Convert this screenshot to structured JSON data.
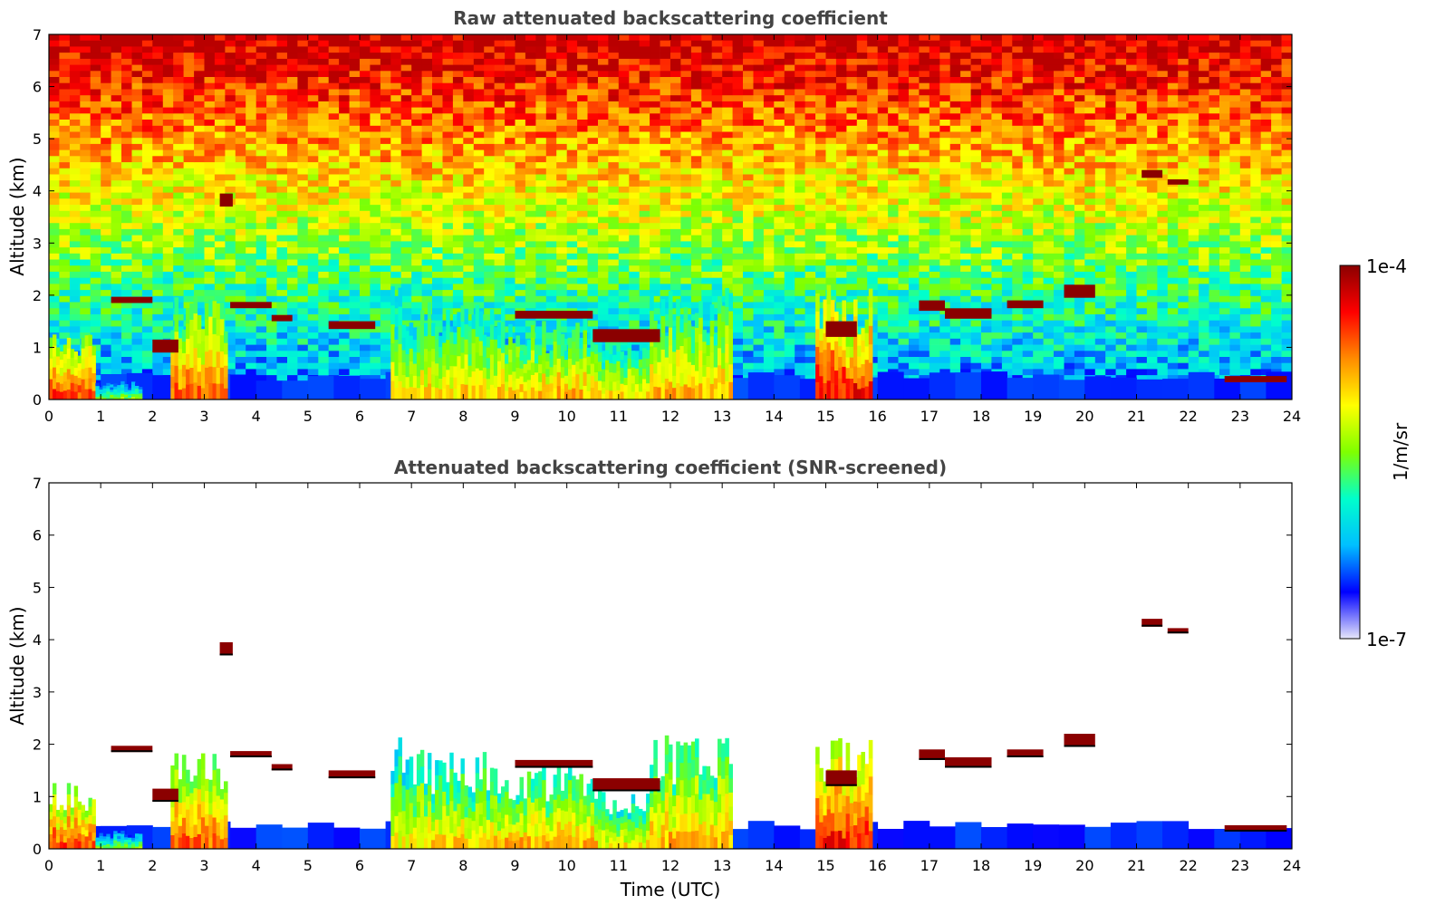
{
  "chart_data": [
    {
      "type": "heatmap",
      "title": "Raw attenuated backscattering coefficient",
      "xlabel": "",
      "ylabel": "Altitude (km)",
      "xlim": [
        0,
        24
      ],
      "ylim": [
        0,
        7
      ],
      "x_ticks": [
        "0",
        "1",
        "2",
        "3",
        "4",
        "5",
        "6",
        "7",
        "8",
        "9",
        "10",
        "11",
        "12",
        "13",
        "14",
        "15",
        "16",
        "17",
        "18",
        "19",
        "20",
        "21",
        "22",
        "23",
        "24"
      ],
      "y_ticks": [
        "0",
        "1",
        "2",
        "3",
        "4",
        "5",
        "6",
        "7"
      ],
      "grid": false,
      "background_noise": true,
      "surface_layer_top_km": 0.45,
      "profiles": [
        {
          "x0": 0.0,
          "x1": 0.9,
          "top": 1.3,
          "level": 0.82
        },
        {
          "x0": 0.9,
          "x1": 1.8,
          "top": 0.35,
          "level": 0.5
        },
        {
          "x0": 2.35,
          "x1": 3.45,
          "top": 2.05,
          "level": 0.78
        },
        {
          "x0": 6.6,
          "x1": 7.1,
          "top": 2.2,
          "level": 0.62
        },
        {
          "x0": 7.1,
          "x1": 8.8,
          "top": 1.9,
          "level": 0.66
        },
        {
          "x0": 8.8,
          "x1": 10.6,
          "top": 1.6,
          "level": 0.7
        },
        {
          "x0": 10.6,
          "x1": 11.6,
          "top": 1.2,
          "level": 0.64
        },
        {
          "x0": 11.6,
          "x1": 13.2,
          "top": 2.2,
          "level": 0.7
        },
        {
          "x0": 14.8,
          "x1": 15.9,
          "top": 2.2,
          "level": 0.86
        }
      ],
      "cloud_layers": [
        {
          "x0": 1.2,
          "x1": 2.0,
          "y": 1.85,
          "h": 0.12
        },
        {
          "x0": 2.0,
          "x1": 2.5,
          "y": 0.9,
          "h": 0.25
        },
        {
          "x0": 3.3,
          "x1": 3.55,
          "y": 3.7,
          "h": 0.25
        },
        {
          "x0": 3.5,
          "x1": 4.3,
          "y": 1.75,
          "h": 0.12
        },
        {
          "x0": 4.3,
          "x1": 4.7,
          "y": 1.5,
          "h": 0.12
        },
        {
          "x0": 5.4,
          "x1": 6.3,
          "y": 1.35,
          "h": 0.15
        },
        {
          "x0": 9.0,
          "x1": 10.5,
          "y": 1.55,
          "h": 0.15
        },
        {
          "x0": 10.5,
          "x1": 11.8,
          "y": 1.1,
          "h": 0.25
        },
        {
          "x0": 15.0,
          "x1": 15.6,
          "y": 1.2,
          "h": 0.3
        },
        {
          "x0": 16.8,
          "x1": 17.3,
          "y": 1.7,
          "h": 0.2
        },
        {
          "x0": 17.3,
          "x1": 18.2,
          "y": 1.55,
          "h": 0.2
        },
        {
          "x0": 18.5,
          "x1": 19.2,
          "y": 1.75,
          "h": 0.15
        },
        {
          "x0": 19.6,
          "x1": 20.2,
          "y": 1.95,
          "h": 0.25
        },
        {
          "x0": 21.1,
          "x1": 21.5,
          "y": 4.25,
          "h": 0.15
        },
        {
          "x0": 21.6,
          "x1": 22.0,
          "y": 4.12,
          "h": 0.1
        },
        {
          "x0": 22.7,
          "x1": 23.9,
          "y": 0.33,
          "h": 0.12
        }
      ]
    },
    {
      "type": "heatmap",
      "title": "Attenuated backscattering coefficient (SNR-screened)",
      "xlabel": "Time (UTC)",
      "ylabel": "Altitude (km)",
      "xlim": [
        0,
        24
      ],
      "ylim": [
        0,
        7
      ],
      "x_ticks": [
        "0",
        "1",
        "2",
        "3",
        "4",
        "5",
        "6",
        "7",
        "8",
        "9",
        "10",
        "11",
        "12",
        "13",
        "14",
        "15",
        "16",
        "17",
        "18",
        "19",
        "20",
        "21",
        "22",
        "23",
        "24"
      ],
      "y_ticks": [
        "0",
        "1",
        "2",
        "3",
        "4",
        "5",
        "6",
        "7"
      ],
      "grid": false,
      "background_noise": false,
      "surface_layer_top_km": 0.45,
      "profiles": [
        {
          "x0": 0.0,
          "x1": 0.9,
          "top": 1.3,
          "level": 0.82
        },
        {
          "x0": 0.9,
          "x1": 1.8,
          "top": 0.35,
          "level": 0.5
        },
        {
          "x0": 2.35,
          "x1": 3.45,
          "top": 2.05,
          "level": 0.78
        },
        {
          "x0": 6.6,
          "x1": 7.1,
          "top": 2.2,
          "level": 0.62
        },
        {
          "x0": 7.1,
          "x1": 8.8,
          "top": 1.9,
          "level": 0.66
        },
        {
          "x0": 8.8,
          "x1": 10.6,
          "top": 1.6,
          "level": 0.7
        },
        {
          "x0": 10.6,
          "x1": 11.6,
          "top": 1.2,
          "level": 0.64
        },
        {
          "x0": 11.6,
          "x1": 13.2,
          "top": 2.2,
          "level": 0.7
        },
        {
          "x0": 14.8,
          "x1": 15.9,
          "top": 2.2,
          "level": 0.86
        }
      ],
      "cloud_layers": [
        {
          "x0": 1.2,
          "x1": 2.0,
          "y": 1.85,
          "h": 0.12
        },
        {
          "x0": 2.0,
          "x1": 2.5,
          "y": 0.9,
          "h": 0.25
        },
        {
          "x0": 3.3,
          "x1": 3.55,
          "y": 3.7,
          "h": 0.25
        },
        {
          "x0": 3.5,
          "x1": 4.3,
          "y": 1.75,
          "h": 0.12
        },
        {
          "x0": 4.3,
          "x1": 4.7,
          "y": 1.5,
          "h": 0.12
        },
        {
          "x0": 5.4,
          "x1": 6.3,
          "y": 1.35,
          "h": 0.15
        },
        {
          "x0": 9.0,
          "x1": 10.5,
          "y": 1.55,
          "h": 0.15
        },
        {
          "x0": 10.5,
          "x1": 11.8,
          "y": 1.1,
          "h": 0.25
        },
        {
          "x0": 15.0,
          "x1": 15.6,
          "y": 1.2,
          "h": 0.3
        },
        {
          "x0": 16.8,
          "x1": 17.3,
          "y": 1.7,
          "h": 0.2
        },
        {
          "x0": 17.3,
          "x1": 18.2,
          "y": 1.55,
          "h": 0.2
        },
        {
          "x0": 18.5,
          "x1": 19.2,
          "y": 1.75,
          "h": 0.15
        },
        {
          "x0": 19.6,
          "x1": 20.2,
          "y": 1.95,
          "h": 0.25
        },
        {
          "x0": 21.1,
          "x1": 21.5,
          "y": 4.25,
          "h": 0.15
        },
        {
          "x0": 21.6,
          "x1": 22.0,
          "y": 4.12,
          "h": 0.1
        },
        {
          "x0": 22.7,
          "x1": 23.9,
          "y": 0.33,
          "h": 0.12
        }
      ]
    }
  ],
  "colorbar": {
    "label": "1/m/sr",
    "min_label": "1e-7",
    "max_label": "1e-4",
    "colormap": "jet",
    "stops": [
      "#e6e6fa",
      "#0000ff",
      "#00bfff",
      "#00ffcc",
      "#7fff00",
      "#ffff00",
      "#ff8c00",
      "#ff0000",
      "#8b0000"
    ]
  }
}
